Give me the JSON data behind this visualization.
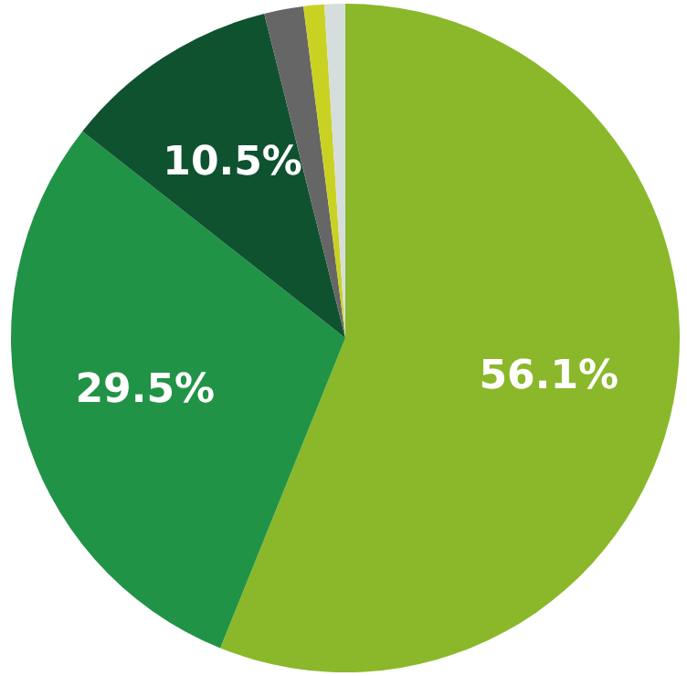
{
  "chart_data": {
    "type": "pie",
    "categories": [
      null,
      null,
      null,
      null,
      null,
      null
    ],
    "values": [
      56.1,
      29.5,
      10.5,
      1.9,
      1.0,
      1.0
    ],
    "colors": [
      "#8ab82a",
      "#219346",
      "#0f5230",
      "#666666",
      "#c9d223",
      "#d6dedd"
    ],
    "value_labels": [
      "56.1%",
      "29.5%",
      "10.5%",
      null,
      null,
      null
    ]
  }
}
